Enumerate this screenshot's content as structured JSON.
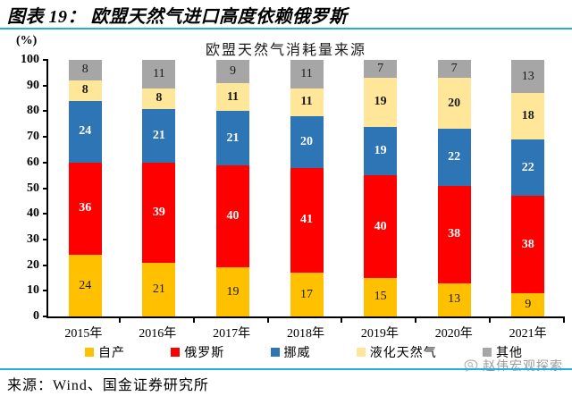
{
  "header": {
    "title": "图表 19：  欧盟天然气进口高度依赖俄罗斯"
  },
  "chart_data": {
    "type": "bar",
    "variant": "stacked-column",
    "title": "欧盟天然气消耗量来源",
    "unit_label": "(%)",
    "categories": [
      "2015年",
      "2016年",
      "2017年",
      "2018年",
      "2019年",
      "2020年",
      "2021年"
    ],
    "series": [
      {
        "name": "自产",
        "color": "#FFC000",
        "label_color": "#1a1a1a",
        "label_bold": false,
        "values": [
          24,
          21,
          19,
          17,
          15,
          13,
          9
        ]
      },
      {
        "name": "俄罗斯",
        "color": "#FF0000",
        "label_color": "#ffffff",
        "label_bold": true,
        "values": [
          36,
          39,
          40,
          41,
          40,
          38,
          38
        ]
      },
      {
        "name": "挪威",
        "color": "#2E75B6",
        "label_color": "#ffffff",
        "label_bold": true,
        "values": [
          24,
          21,
          21,
          20,
          19,
          22,
          22
        ]
      },
      {
        "name": "液化天然气",
        "color": "#FFE699",
        "label_color": "#1a1a1a",
        "label_bold": true,
        "values": [
          8,
          8,
          11,
          11,
          19,
          20,
          18
        ]
      },
      {
        "name": "其他",
        "color": "#A6A6A6",
        "label_color": "#1a1a1a",
        "label_bold": false,
        "values": [
          8,
          11,
          9,
          11,
          7,
          7,
          13
        ]
      }
    ],
    "ylim": [
      0,
      100
    ],
    "yticks": [
      0,
      10,
      20,
      30,
      40,
      50,
      60,
      70,
      80,
      90,
      100
    ],
    "grid": false,
    "legend_position": "bottom"
  },
  "footer": {
    "source": "来源：Wind、国金证券研究所",
    "watermark": "赵伟宏观探索"
  },
  "colors": {
    "divider": "#29ABE2",
    "watermark_text": "#9B9B9B"
  }
}
